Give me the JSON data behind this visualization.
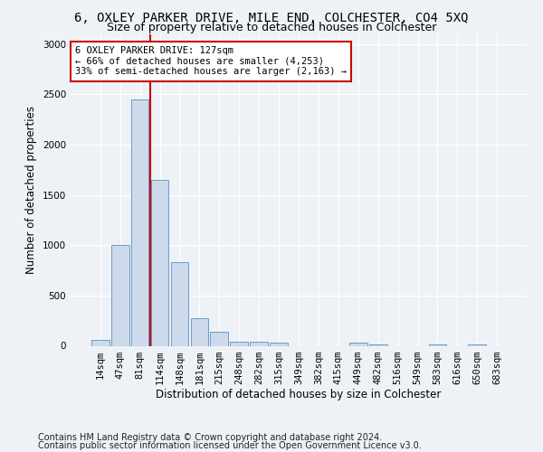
{
  "title": "6, OXLEY PARKER DRIVE, MILE END, COLCHESTER, CO4 5XQ",
  "subtitle": "Size of property relative to detached houses in Colchester",
  "xlabel": "Distribution of detached houses by size in Colchester",
  "ylabel": "Number of detached properties",
  "footer_line1": "Contains HM Land Registry data © Crown copyright and database right 2024.",
  "footer_line2": "Contains public sector information licensed under the Open Government Licence v3.0.",
  "bar_labels": [
    "14sqm",
    "47sqm",
    "81sqm",
    "114sqm",
    "148sqm",
    "181sqm",
    "215sqm",
    "248sqm",
    "282sqm",
    "315sqm",
    "349sqm",
    "382sqm",
    "415sqm",
    "449sqm",
    "482sqm",
    "516sqm",
    "549sqm",
    "583sqm",
    "616sqm",
    "650sqm",
    "683sqm"
  ],
  "bar_values": [
    60,
    1000,
    2450,
    1650,
    830,
    270,
    140,
    40,
    40,
    30,
    0,
    0,
    0,
    30,
    15,
    0,
    0,
    15,
    0,
    15,
    0
  ],
  "bar_color": "#ccdaeb",
  "bar_edge_color": "#5b8fbf",
  "vline_x_index": 3,
  "vline_color": "#cc0000",
  "annotation_text": "6 OXLEY PARKER DRIVE: 127sqm\n← 66% of detached houses are smaller (4,253)\n33% of semi-detached houses are larger (2,163) →",
  "annotation_box_color": "#ffffff",
  "annotation_box_edge": "#cc0000",
  "ylim": [
    0,
    3100
  ],
  "background_color": "#eef2f7",
  "grid_color": "#ffffff",
  "title_fontsize": 10,
  "subtitle_fontsize": 9,
  "axis_label_fontsize": 8.5,
  "tick_fontsize": 7.5,
  "footer_fontsize": 7
}
